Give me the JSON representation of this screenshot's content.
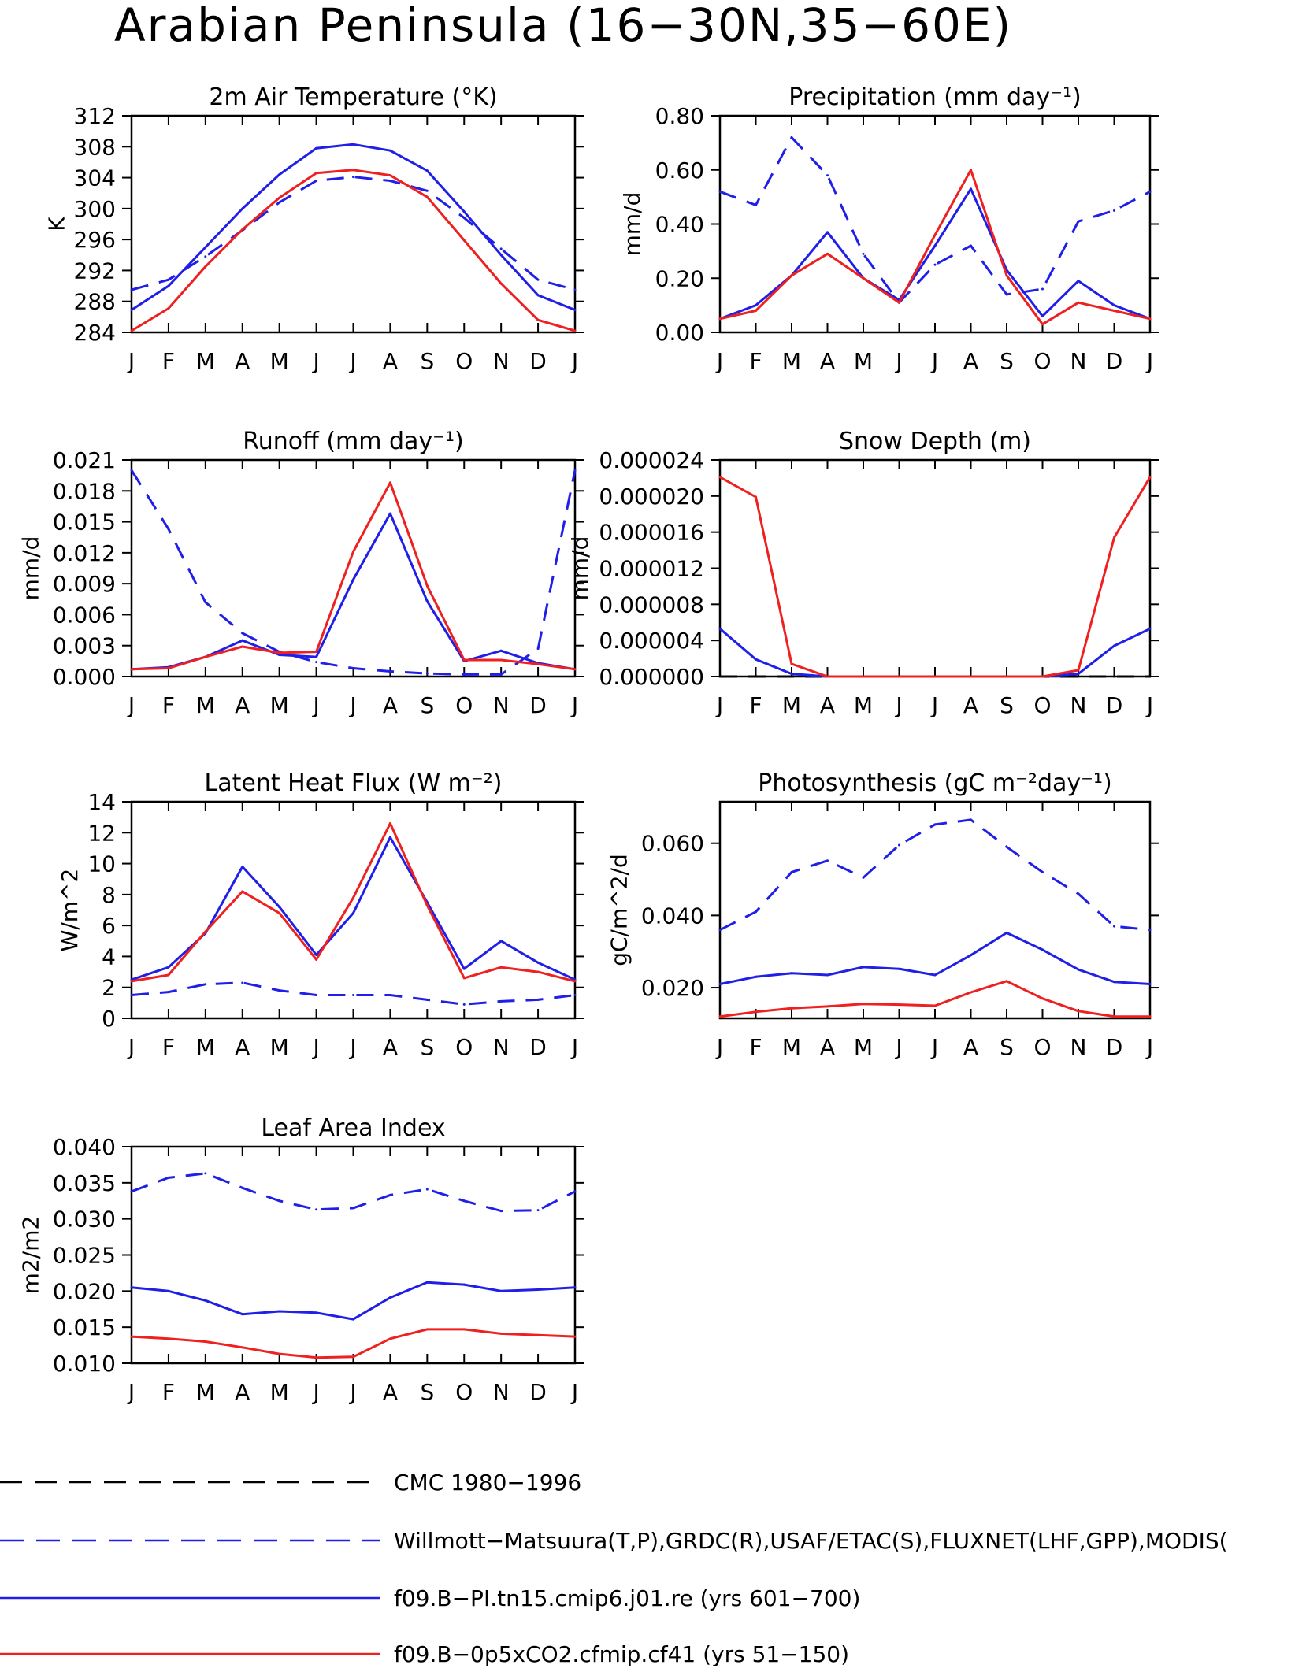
{
  "title": "Arabian Peninsula (16−30N,35−60E)",
  "months": [
    "J",
    "F",
    "M",
    "A",
    "M",
    "J",
    "J",
    "A",
    "S",
    "O",
    "N",
    "D",
    "J"
  ],
  "colors": {
    "obs": "#1f1fe8",
    "ctrl": "#1f1fe8",
    "exp": "#ee2020",
    "cmc": "#000000"
  },
  "legend": [
    {
      "key": "cmc",
      "label": "CMC 1980−1996",
      "color": "#000000",
      "style": "dash"
    },
    {
      "key": "obs",
      "label": "Willmott−Matsuura(T,P),GRDC(R),USAF/ETAC(S),FLUXNET(LHF,GPP),MODIS(",
      "color": "#1f1fe8",
      "style": "dash"
    },
    {
      "key": "ctrl",
      "label": "f09.B−PI.tn15.cmip6.j01.re (yrs 601−700)",
      "color": "#1f1fe8",
      "style": "solid"
    },
    {
      "key": "exp",
      "label": "f09.B−0p5xCO2.cfmip.cf41 (yrs 51−150)",
      "color": "#ee2020",
      "style": "solid"
    }
  ],
  "chart_data": [
    {
      "type": "line",
      "title": "2m Air Temperature (°K)",
      "ylabel": "K",
      "ylim": [
        284,
        312
      ],
      "yticks": [
        284,
        288,
        292,
        296,
        300,
        304,
        308,
        312
      ],
      "ytick_labels": [
        "284",
        "288",
        "292",
        "296",
        "300",
        "304",
        "308",
        "312"
      ],
      "x": [
        "J",
        "F",
        "M",
        "A",
        "M",
        "J",
        "J",
        "A",
        "S",
        "O",
        "N",
        "D",
        "J"
      ],
      "series": [
        {
          "key": "obs",
          "style": "dash",
          "values": [
            289.5,
            290.8,
            293.8,
            297.2,
            300.8,
            303.6,
            304.1,
            303.6,
            302.3,
            298.8,
            294.8,
            290.8,
            289.5
          ]
        },
        {
          "key": "ctrl",
          "style": "solid",
          "values": [
            286.9,
            290.0,
            295.0,
            300.0,
            304.4,
            307.8,
            308.3,
            307.5,
            304.9,
            299.6,
            294.0,
            288.8,
            286.9
          ]
        },
        {
          "key": "exp",
          "style": "solid",
          "values": [
            284.2,
            287.1,
            292.5,
            297.3,
            301.4,
            304.6,
            305.0,
            304.3,
            301.5,
            295.9,
            290.3,
            285.6,
            284.2
          ]
        }
      ]
    },
    {
      "type": "line",
      "title": "Precipitation (mm day⁻¹)",
      "ylabel": "mm/d",
      "ylim": [
        0,
        0.8
      ],
      "yticks": [
        0,
        0.2,
        0.4,
        0.6,
        0.8
      ],
      "ytick_labels": [
        "0.00",
        "0.20",
        "0.40",
        "0.60",
        "0.80"
      ],
      "x": [
        "J",
        "F",
        "M",
        "A",
        "M",
        "J",
        "J",
        "A",
        "S",
        "O",
        "N",
        "D",
        "J"
      ],
      "series": [
        {
          "key": "obs",
          "style": "dash",
          "values": [
            0.52,
            0.47,
            0.72,
            0.58,
            0.29,
            0.11,
            0.25,
            0.32,
            0.14,
            0.16,
            0.41,
            0.45,
            0.52
          ]
        },
        {
          "key": "ctrl",
          "style": "solid",
          "values": [
            0.05,
            0.1,
            0.21,
            0.37,
            0.2,
            0.12,
            0.32,
            0.53,
            0.23,
            0.06,
            0.19,
            0.1,
            0.05
          ]
        },
        {
          "key": "exp",
          "style": "solid",
          "values": [
            0.05,
            0.08,
            0.21,
            0.29,
            0.2,
            0.11,
            0.36,
            0.6,
            0.21,
            0.03,
            0.11,
            0.08,
            0.05
          ]
        }
      ]
    },
    {
      "type": "line",
      "title": "Runoff (mm day⁻¹)",
      "ylabel": "mm/d",
      "ylim": [
        0,
        0.021
      ],
      "yticks": [
        0,
        0.003,
        0.006,
        0.009,
        0.012,
        0.015,
        0.018,
        0.021
      ],
      "ytick_labels": [
        "0.000",
        "0.003",
        "0.006",
        "0.009",
        "0.012",
        "0.015",
        "0.018",
        "0.021"
      ],
      "x": [
        "J",
        "F",
        "M",
        "A",
        "M",
        "J",
        "J",
        "A",
        "S",
        "O",
        "N",
        "D",
        "J"
      ],
      "series": [
        {
          "key": "obs",
          "style": "dash",
          "values": [
            0.02,
            0.0143,
            0.0072,
            0.0042,
            0.0024,
            0.0014,
            0.0008,
            0.0005,
            0.0003,
            0.0002,
            0.0002,
            0.0027,
            0.02
          ]
        },
        {
          "key": "ctrl",
          "style": "solid",
          "values": [
            0.0007,
            0.0009,
            0.0019,
            0.0035,
            0.0021,
            0.0019,
            0.0094,
            0.0158,
            0.0073,
            0.0015,
            0.0025,
            0.0013,
            0.0007
          ]
        },
        {
          "key": "exp",
          "style": "solid",
          "values": [
            0.0007,
            0.0008,
            0.0019,
            0.0029,
            0.0023,
            0.0024,
            0.0121,
            0.0188,
            0.0088,
            0.0016,
            0.0016,
            0.0012,
            0.0007
          ]
        }
      ]
    },
    {
      "type": "line",
      "title": "Snow Depth (m)",
      "ylabel": "mm/d",
      "ylim": [
        0,
        2.4e-05
      ],
      "yticks": [
        0,
        4e-06,
        8e-06,
        1.2e-05,
        1.6e-05,
        2e-05,
        2.4e-05
      ],
      "ytick_labels": [
        "0.000000",
        "0.000004",
        "0.000008",
        "0.000012",
        "0.000016",
        "0.000020",
        "0.000024"
      ],
      "x": [
        "J",
        "F",
        "M",
        "A",
        "M",
        "J",
        "J",
        "A",
        "S",
        "O",
        "N",
        "D",
        "J"
      ],
      "series": [
        {
          "key": "cmc",
          "style": "dash",
          "values": [
            0,
            0,
            0,
            0,
            0,
            0,
            0,
            0,
            0,
            0,
            0,
            0,
            0
          ]
        },
        {
          "key": "ctrl",
          "style": "solid",
          "values": [
            5.3e-06,
            1.9e-06,
            3e-07,
            0,
            0,
            0,
            0,
            0,
            0,
            0,
            3e-07,
            3.4e-06,
            5.3e-06
          ]
        },
        {
          "key": "exp",
          "style": "solid",
          "values": [
            2.21e-05,
            1.99e-05,
            1.4e-06,
            0,
            0,
            0,
            0,
            0,
            0,
            0,
            7e-07,
            1.54e-05,
            2.21e-05
          ]
        }
      ]
    },
    {
      "type": "line",
      "title": "Latent Heat Flux (W m⁻²)",
      "ylabel": "W/m^2",
      "ylim": [
        0,
        14
      ],
      "yticks": [
        0,
        2,
        4,
        6,
        8,
        10,
        12,
        14
      ],
      "ytick_labels": [
        "0",
        "2",
        "4",
        "6",
        "8",
        "10",
        "12",
        "14"
      ],
      "x": [
        "J",
        "F",
        "M",
        "A",
        "M",
        "J",
        "J",
        "A",
        "S",
        "O",
        "N",
        "D",
        "J"
      ],
      "series": [
        {
          "key": "obs",
          "style": "dash",
          "values": [
            1.5,
            1.7,
            2.2,
            2.3,
            1.8,
            1.5,
            1.5,
            1.5,
            1.2,
            0.9,
            1.1,
            1.2,
            1.5
          ]
        },
        {
          "key": "ctrl",
          "style": "solid",
          "values": [
            2.5,
            3.3,
            5.5,
            9.8,
            7.2,
            4.1,
            6.8,
            11.7,
            7.5,
            3.2,
            5.0,
            3.6,
            2.5
          ]
        },
        {
          "key": "exp",
          "style": "solid",
          "values": [
            2.4,
            2.8,
            5.6,
            8.2,
            6.8,
            3.8,
            7.8,
            12.6,
            7.3,
            2.6,
            3.3,
            3.0,
            2.4
          ]
        }
      ]
    },
    {
      "type": "line",
      "title": "Photosynthesis (gC m⁻²day⁻¹)",
      "ylabel": "gC/m^2/d",
      "ylim": [
        0.0115,
        0.0715
      ],
      "yticks": [
        0.02,
        0.04,
        0.06
      ],
      "ytick_labels": [
        "0.020",
        "0.040",
        "0.060"
      ],
      "x": [
        "J",
        "F",
        "M",
        "A",
        "M",
        "J",
        "J",
        "A",
        "S",
        "O",
        "N",
        "D",
        "J"
      ],
      "series": [
        {
          "key": "obs",
          "style": "dash",
          "values": [
            0.036,
            0.041,
            0.052,
            0.0552,
            0.0505,
            0.0595,
            0.0652,
            0.0665,
            0.059,
            0.052,
            0.046,
            0.037,
            0.036
          ]
        },
        {
          "key": "ctrl",
          "style": "solid",
          "values": [
            0.021,
            0.023,
            0.024,
            0.0235,
            0.0257,
            0.0252,
            0.0235,
            0.029,
            0.0352,
            0.0305,
            0.025,
            0.0216,
            0.021
          ]
        },
        {
          "key": "exp",
          "style": "solid",
          "values": [
            0.012,
            0.0133,
            0.0143,
            0.0148,
            0.0155,
            0.0153,
            0.015,
            0.0187,
            0.0218,
            0.017,
            0.0135,
            0.012,
            0.012
          ]
        }
      ]
    },
    {
      "type": "line",
      "title": "Leaf Area Index",
      "ylabel": "m2/m2",
      "ylim": [
        0.01,
        0.04
      ],
      "yticks": [
        0.01,
        0.015,
        0.02,
        0.025,
        0.03,
        0.035,
        0.04
      ],
      "ytick_labels": [
        "0.010",
        "0.015",
        "0.020",
        "0.025",
        "0.030",
        "0.035",
        "0.040"
      ],
      "x": [
        "J",
        "F",
        "M",
        "A",
        "M",
        "J",
        "J",
        "A",
        "S",
        "O",
        "N",
        "D",
        "J"
      ],
      "series": [
        {
          "key": "obs",
          "style": "dash",
          "values": [
            0.0338,
            0.0357,
            0.0363,
            0.0343,
            0.0325,
            0.0313,
            0.0315,
            0.0333,
            0.0341,
            0.0325,
            0.0311,
            0.0312,
            0.0338
          ]
        },
        {
          "key": "ctrl",
          "style": "solid",
          "values": [
            0.0205,
            0.02,
            0.0187,
            0.0168,
            0.0172,
            0.017,
            0.0161,
            0.0191,
            0.0212,
            0.0209,
            0.02,
            0.0202,
            0.0205
          ]
        },
        {
          "key": "exp",
          "style": "solid",
          "values": [
            0.0137,
            0.0134,
            0.013,
            0.0122,
            0.0113,
            0.0108,
            0.0109,
            0.0134,
            0.0147,
            0.0147,
            0.0141,
            0.0139,
            0.0137
          ]
        }
      ]
    }
  ]
}
